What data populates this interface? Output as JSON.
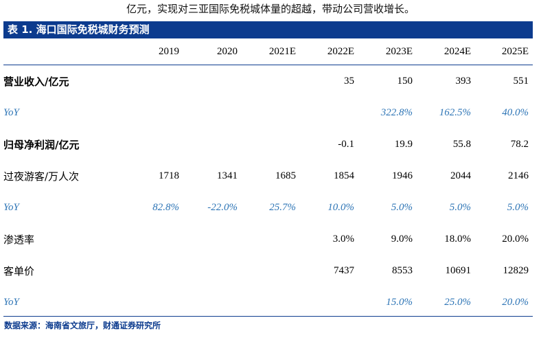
{
  "intro_text": "亿元，实现对三亚国际免税城体量的超越，带动公司营收增长。",
  "table_title": "表 1. 海口国际免税城财务预测",
  "years": [
    "2019",
    "2020",
    "2021E",
    "2022E",
    "2023E",
    "2024E",
    "2025E"
  ],
  "rows": [
    {
      "label": "营业收入/亿元",
      "style": "bold",
      "values": [
        "",
        "",
        "",
        "35",
        "150",
        "393",
        "551"
      ]
    },
    {
      "label": "YoY",
      "style": "blue",
      "values": [
        "",
        "",
        "",
        "",
        "322.8%",
        "162.5%",
        "40.0%"
      ]
    },
    {
      "label": "归母净利润/亿元",
      "style": "bold",
      "values": [
        "",
        "",
        "",
        "-0.1",
        "19.9",
        "55.8",
        "78.2"
      ]
    },
    {
      "label": "过夜游客/万人次",
      "style": "normal",
      "values": [
        "1718",
        "1341",
        "1685",
        "1854",
        "1946",
        "2044",
        "2146"
      ]
    },
    {
      "label": "YoY",
      "style": "blue",
      "values": [
        "82.8%",
        "-22.0%",
        "25.7%",
        "10.0%",
        "5.0%",
        "5.0%",
        "5.0%"
      ]
    },
    {
      "label": "渗透率",
      "style": "normal",
      "values": [
        "",
        "",
        "",
        "3.0%",
        "9.0%",
        "18.0%",
        "20.0%"
      ]
    },
    {
      "label": "客单价",
      "style": "normal",
      "values": [
        "",
        "",
        "",
        "7437",
        "8553",
        "10691",
        "12829"
      ]
    },
    {
      "label": "YoY",
      "style": "blue",
      "values": [
        "",
        "",
        "",
        "",
        "15.0%",
        "25.0%",
        "20.0%"
      ]
    }
  ],
  "source": "数据来源：海南省文旅厅，财通证券研究所",
  "colors": {
    "header_bg": "#0c3b8e",
    "yoy_text": "#2e75b6"
  }
}
